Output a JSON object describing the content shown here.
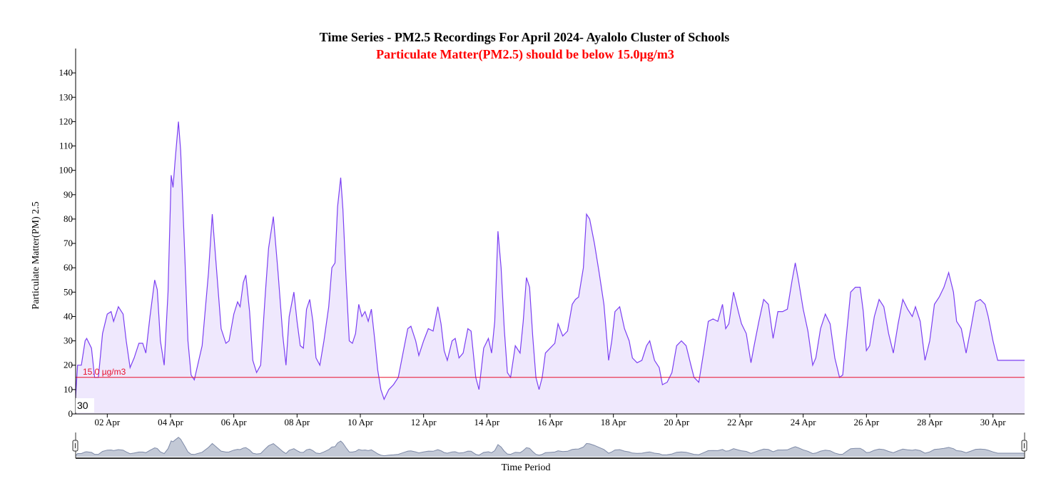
{
  "chart_data": {
    "type": "area",
    "title": "Time Series - PM2.5 Recordings For April 2024- Ayalolo Cluster of Schools",
    "subtitle": "Particulate Matter(PM2.5) should be below 15.0µg/m3",
    "ylabel": "Particulate Matter(PM) 2.5",
    "xlabel": "Time Period",
    "ylim": [
      0,
      150
    ],
    "yticks": [
      0,
      10,
      20,
      30,
      40,
      50,
      60,
      70,
      80,
      90,
      100,
      110,
      120,
      130,
      140
    ],
    "xlim": [
      1.0,
      31.0
    ],
    "xticks": [
      {
        "day": 2,
        "label": "02 Apr"
      },
      {
        "day": 4,
        "label": "04 Apr"
      },
      {
        "day": 6,
        "label": "06 Apr"
      },
      {
        "day": 8,
        "label": "08 Apr"
      },
      {
        "day": 10,
        "label": "10 Apr"
      },
      {
        "day": 12,
        "label": "12 Apr"
      },
      {
        "day": 14,
        "label": "14 Apr"
      },
      {
        "day": 16,
        "label": "16 Apr"
      },
      {
        "day": 18,
        "label": "18 Apr"
      },
      {
        "day": 20,
        "label": "20 Apr"
      },
      {
        "day": 22,
        "label": "22 Apr"
      },
      {
        "day": 24,
        "label": "24 Apr"
      },
      {
        "day": 26,
        "label": "26 Apr"
      },
      {
        "day": 28,
        "label": "28 Apr"
      },
      {
        "day": 30,
        "label": "30 Apr"
      }
    ],
    "threshold": {
      "value": 15.0,
      "label": "15.0 µg/m3"
    },
    "grid": false,
    "tooltip_value": "30",
    "series": [
      {
        "values": [
          [
            1.0,
            7
          ],
          [
            1.06,
            20
          ],
          [
            1.18,
            20
          ],
          [
            1.3,
            30
          ],
          [
            1.35,
            31
          ],
          [
            1.5,
            27
          ],
          [
            1.6,
            15
          ],
          [
            1.72,
            15
          ],
          [
            1.85,
            33
          ],
          [
            2.0,
            41
          ],
          [
            2.12,
            42
          ],
          [
            2.2,
            38
          ],
          [
            2.35,
            44
          ],
          [
            2.5,
            41
          ],
          [
            2.6,
            30
          ],
          [
            2.72,
            19
          ],
          [
            2.85,
            23
          ],
          [
            3.0,
            29
          ],
          [
            3.12,
            29
          ],
          [
            3.22,
            25
          ],
          [
            3.35,
            40
          ],
          [
            3.5,
            55
          ],
          [
            3.58,
            51
          ],
          [
            3.68,
            30
          ],
          [
            3.8,
            20
          ],
          [
            3.92,
            50
          ],
          [
            4.02,
            98
          ],
          [
            4.08,
            93
          ],
          [
            4.15,
            105
          ],
          [
            4.25,
            120
          ],
          [
            4.32,
            108
          ],
          [
            4.45,
            65
          ],
          [
            4.55,
            30
          ],
          [
            4.65,
            16
          ],
          [
            4.75,
            14
          ],
          [
            5.0,
            28
          ],
          [
            5.2,
            58
          ],
          [
            5.32,
            82
          ],
          [
            5.45,
            60
          ],
          [
            5.6,
            35
          ],
          [
            5.75,
            29
          ],
          [
            5.85,
            30
          ],
          [
            6.0,
            41
          ],
          [
            6.12,
            46
          ],
          [
            6.2,
            44
          ],
          [
            6.3,
            54
          ],
          [
            6.38,
            57
          ],
          [
            6.5,
            42
          ],
          [
            6.6,
            22
          ],
          [
            6.72,
            17
          ],
          [
            6.85,
            20
          ],
          [
            7.0,
            50
          ],
          [
            7.1,
            68
          ],
          [
            7.25,
            81
          ],
          [
            7.4,
            58
          ],
          [
            7.55,
            32
          ],
          [
            7.65,
            20
          ],
          [
            7.75,
            40
          ],
          [
            7.9,
            50
          ],
          [
            8.0,
            38
          ],
          [
            8.1,
            28
          ],
          [
            8.2,
            27
          ],
          [
            8.3,
            43
          ],
          [
            8.4,
            47
          ],
          [
            8.5,
            38
          ],
          [
            8.6,
            23
          ],
          [
            8.72,
            20
          ],
          [
            8.85,
            30
          ],
          [
            9.0,
            44
          ],
          [
            9.1,
            60
          ],
          [
            9.2,
            62
          ],
          [
            9.28,
            85
          ],
          [
            9.38,
            97
          ],
          [
            9.45,
            84
          ],
          [
            9.55,
            55
          ],
          [
            9.65,
            30
          ],
          [
            9.75,
            29
          ],
          [
            9.85,
            33
          ],
          [
            9.95,
            45
          ],
          [
            10.05,
            40
          ],
          [
            10.15,
            42
          ],
          [
            10.25,
            38
          ],
          [
            10.35,
            43
          ],
          [
            10.45,
            31
          ],
          [
            10.55,
            18
          ],
          [
            10.65,
            10
          ],
          [
            10.75,
            6
          ],
          [
            10.9,
            10
          ],
          [
            11.05,
            12
          ],
          [
            11.2,
            15
          ],
          [
            11.35,
            25
          ],
          [
            11.5,
            35
          ],
          [
            11.6,
            36
          ],
          [
            11.75,
            30
          ],
          [
            11.85,
            24
          ],
          [
            12.0,
            30
          ],
          [
            12.15,
            35
          ],
          [
            12.3,
            34
          ],
          [
            12.45,
            44
          ],
          [
            12.55,
            37
          ],
          [
            12.65,
            26
          ],
          [
            12.75,
            22
          ],
          [
            12.9,
            30
          ],
          [
            13.0,
            31
          ],
          [
            13.12,
            23
          ],
          [
            13.25,
            25
          ],
          [
            13.4,
            35
          ],
          [
            13.5,
            34
          ],
          [
            13.65,
            15
          ],
          [
            13.75,
            10
          ],
          [
            13.9,
            27
          ],
          [
            14.05,
            31
          ],
          [
            14.15,
            25
          ],
          [
            14.25,
            38
          ],
          [
            14.35,
            75
          ],
          [
            14.45,
            60
          ],
          [
            14.55,
            35
          ],
          [
            14.65,
            17
          ],
          [
            14.75,
            15
          ],
          [
            14.9,
            28
          ],
          [
            15.05,
            25
          ],
          [
            15.15,
            38
          ],
          [
            15.25,
            56
          ],
          [
            15.35,
            52
          ],
          [
            15.45,
            32
          ],
          [
            15.55,
            15
          ],
          [
            15.65,
            10
          ],
          [
            15.75,
            15
          ],
          [
            15.85,
            25
          ],
          [
            16.0,
            27
          ],
          [
            16.15,
            29
          ],
          [
            16.25,
            37
          ],
          [
            16.4,
            32
          ],
          [
            16.55,
            34
          ],
          [
            16.7,
            45
          ],
          [
            16.8,
            47
          ],
          [
            16.9,
            48
          ],
          [
            17.05,
            60
          ],
          [
            17.15,
            82
          ],
          [
            17.25,
            80
          ],
          [
            17.4,
            70
          ],
          [
            17.55,
            58
          ],
          [
            17.7,
            45
          ],
          [
            17.85,
            22
          ],
          [
            17.95,
            30
          ],
          [
            18.05,
            42
          ],
          [
            18.2,
            44
          ],
          [
            18.35,
            35
          ],
          [
            18.5,
            30
          ],
          [
            18.6,
            23
          ],
          [
            18.75,
            21
          ],
          [
            18.9,
            22
          ],
          [
            19.05,
            28
          ],
          [
            19.15,
            30
          ],
          [
            19.3,
            22
          ],
          [
            19.45,
            19
          ],
          [
            19.55,
            12
          ],
          [
            19.7,
            13
          ],
          [
            19.85,
            17
          ],
          [
            20.0,
            28
          ],
          [
            20.15,
            30
          ],
          [
            20.3,
            28
          ],
          [
            20.45,
            20
          ],
          [
            20.55,
            15
          ],
          [
            20.7,
            13
          ],
          [
            20.85,
            25
          ],
          [
            21.0,
            38
          ],
          [
            21.15,
            39
          ],
          [
            21.3,
            38
          ],
          [
            21.45,
            45
          ],
          [
            21.55,
            35
          ],
          [
            21.65,
            37
          ],
          [
            21.8,
            50
          ],
          [
            21.95,
            42
          ],
          [
            22.05,
            37
          ],
          [
            22.2,
            33
          ],
          [
            22.35,
            21
          ],
          [
            22.45,
            28
          ],
          [
            22.6,
            38
          ],
          [
            22.75,
            47
          ],
          [
            22.9,
            45
          ],
          [
            23.05,
            31
          ],
          [
            23.2,
            42
          ],
          [
            23.35,
            42
          ],
          [
            23.5,
            43
          ],
          [
            23.65,
            55
          ],
          [
            23.75,
            62
          ],
          [
            23.85,
            55
          ],
          [
            24.0,
            43
          ],
          [
            24.15,
            34
          ],
          [
            24.3,
            20
          ],
          [
            24.4,
            23
          ],
          [
            24.55,
            35
          ],
          [
            24.7,
            41
          ],
          [
            24.85,
            37
          ],
          [
            25.0,
            23
          ],
          [
            25.15,
            15
          ],
          [
            25.25,
            16
          ],
          [
            25.35,
            30
          ],
          [
            25.5,
            50
          ],
          [
            25.65,
            52
          ],
          [
            25.8,
            52
          ],
          [
            25.9,
            42
          ],
          [
            26.0,
            26
          ],
          [
            26.1,
            28
          ],
          [
            26.25,
            40
          ],
          [
            26.4,
            47
          ],
          [
            26.55,
            44
          ],
          [
            26.7,
            33
          ],
          [
            26.85,
            25
          ],
          [
            27.0,
            37
          ],
          [
            27.15,
            47
          ],
          [
            27.3,
            43
          ],
          [
            27.45,
            40
          ],
          [
            27.55,
            44
          ],
          [
            27.7,
            38
          ],
          [
            27.85,
            22
          ],
          [
            28.0,
            30
          ],
          [
            28.15,
            45
          ],
          [
            28.3,
            48
          ],
          [
            28.45,
            52
          ],
          [
            28.6,
            58
          ],
          [
            28.75,
            50
          ],
          [
            28.85,
            38
          ],
          [
            29.0,
            35
          ],
          [
            29.15,
            25
          ],
          [
            29.3,
            35
          ],
          [
            29.45,
            46
          ],
          [
            29.6,
            47
          ],
          [
            29.75,
            45
          ],
          [
            29.85,
            40
          ],
          [
            30.0,
            30
          ],
          [
            30.15,
            22
          ],
          [
            31.0,
            22
          ]
        ]
      }
    ],
    "colors": {
      "line": "#7b3ff2",
      "area": "#efe8fd",
      "threshold": "#e8112d",
      "navigator_line": "#7f8ba8",
      "navigator_area": "#c3c9d6"
    }
  }
}
